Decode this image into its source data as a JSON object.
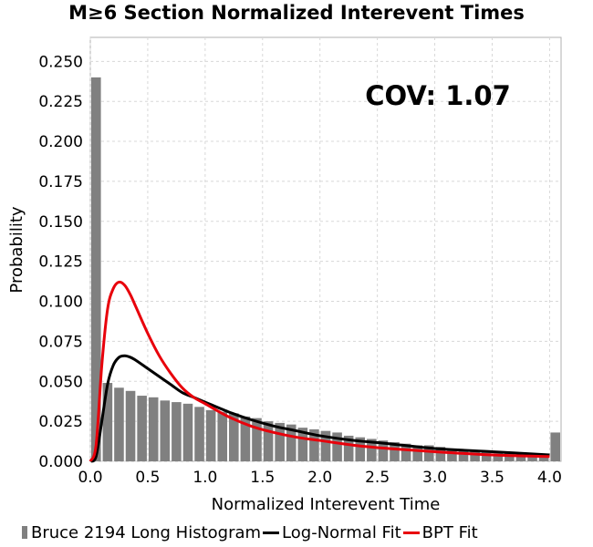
{
  "chart_data": {
    "type": "bar",
    "title": "M≥6 Section Normalized Interevent Times",
    "xlabel": "Normalized Interevent Time",
    "ylabel": "Probability",
    "annotation": "COV: 1.07",
    "xlim": [
      0.0,
      4.1
    ],
    "ylim": [
      0.0,
      0.265
    ],
    "xticks": [
      "0.0",
      "0.5",
      "1.0",
      "1.5",
      "2.0",
      "2.5",
      "3.0",
      "3.5",
      "4.0"
    ],
    "yticks": [
      "0.000",
      "0.025",
      "0.050",
      "0.075",
      "0.100",
      "0.125",
      "0.150",
      "0.175",
      "0.200",
      "0.225",
      "0.250"
    ],
    "grid": true,
    "legend_position": "bottom",
    "histogram": {
      "name": "Bruce 2194 Long Histogram",
      "color": "#808080",
      "bin_width": 0.1,
      "x": [
        0.0,
        0.1,
        0.2,
        0.3,
        0.4,
        0.5,
        0.6,
        0.7,
        0.8,
        0.9,
        1.0,
        1.1,
        1.2,
        1.3,
        1.4,
        1.5,
        1.6,
        1.7,
        1.8,
        1.9,
        2.0,
        2.1,
        2.2,
        2.3,
        2.4,
        2.5,
        2.6,
        2.7,
        2.8,
        2.9,
        3.0,
        3.1,
        3.2,
        3.3,
        3.4,
        3.5,
        3.6,
        3.7,
        3.8,
        3.9,
        4.0
      ],
      "values": [
        0.24,
        0.049,
        0.046,
        0.044,
        0.041,
        0.04,
        0.038,
        0.037,
        0.036,
        0.034,
        0.032,
        0.031,
        0.03,
        0.028,
        0.027,
        0.025,
        0.024,
        0.023,
        0.021,
        0.02,
        0.019,
        0.018,
        0.016,
        0.015,
        0.014,
        0.013,
        0.012,
        0.011,
        0.01,
        0.01,
        0.009,
        0.008,
        0.007,
        0.007,
        0.006,
        0.005,
        0.005,
        0.004,
        0.004,
        0.004,
        0.018
      ]
    },
    "series": [
      {
        "name": "Log-Normal Fit",
        "color": "#000000",
        "x": [
          0.0,
          0.05,
          0.1,
          0.15,
          0.2,
          0.25,
          0.3,
          0.35,
          0.4,
          0.5,
          0.6,
          0.7,
          0.8,
          0.9,
          1.0,
          1.2,
          1.4,
          1.6,
          1.8,
          2.0,
          2.3,
          2.6,
          3.0,
          3.5,
          4.0
        ],
        "values": [
          0.0,
          0.003,
          0.025,
          0.048,
          0.06,
          0.065,
          0.066,
          0.065,
          0.063,
          0.058,
          0.053,
          0.048,
          0.043,
          0.04,
          0.037,
          0.031,
          0.026,
          0.022,
          0.019,
          0.016,
          0.013,
          0.011,
          0.008,
          0.006,
          0.004
        ]
      },
      {
        "name": "BPT Fit",
        "color": "#e8000b",
        "x": [
          0.0,
          0.05,
          0.1,
          0.15,
          0.2,
          0.25,
          0.3,
          0.35,
          0.4,
          0.5,
          0.6,
          0.7,
          0.8,
          0.9,
          1.0,
          1.2,
          1.4,
          1.6,
          1.8,
          2.0,
          2.3,
          2.6,
          3.0,
          3.5,
          4.0
        ],
        "values": [
          0.0,
          0.01,
          0.06,
          0.095,
          0.108,
          0.112,
          0.11,
          0.104,
          0.096,
          0.08,
          0.066,
          0.055,
          0.046,
          0.04,
          0.036,
          0.028,
          0.022,
          0.018,
          0.015,
          0.013,
          0.01,
          0.008,
          0.006,
          0.004,
          0.003
        ]
      }
    ]
  }
}
